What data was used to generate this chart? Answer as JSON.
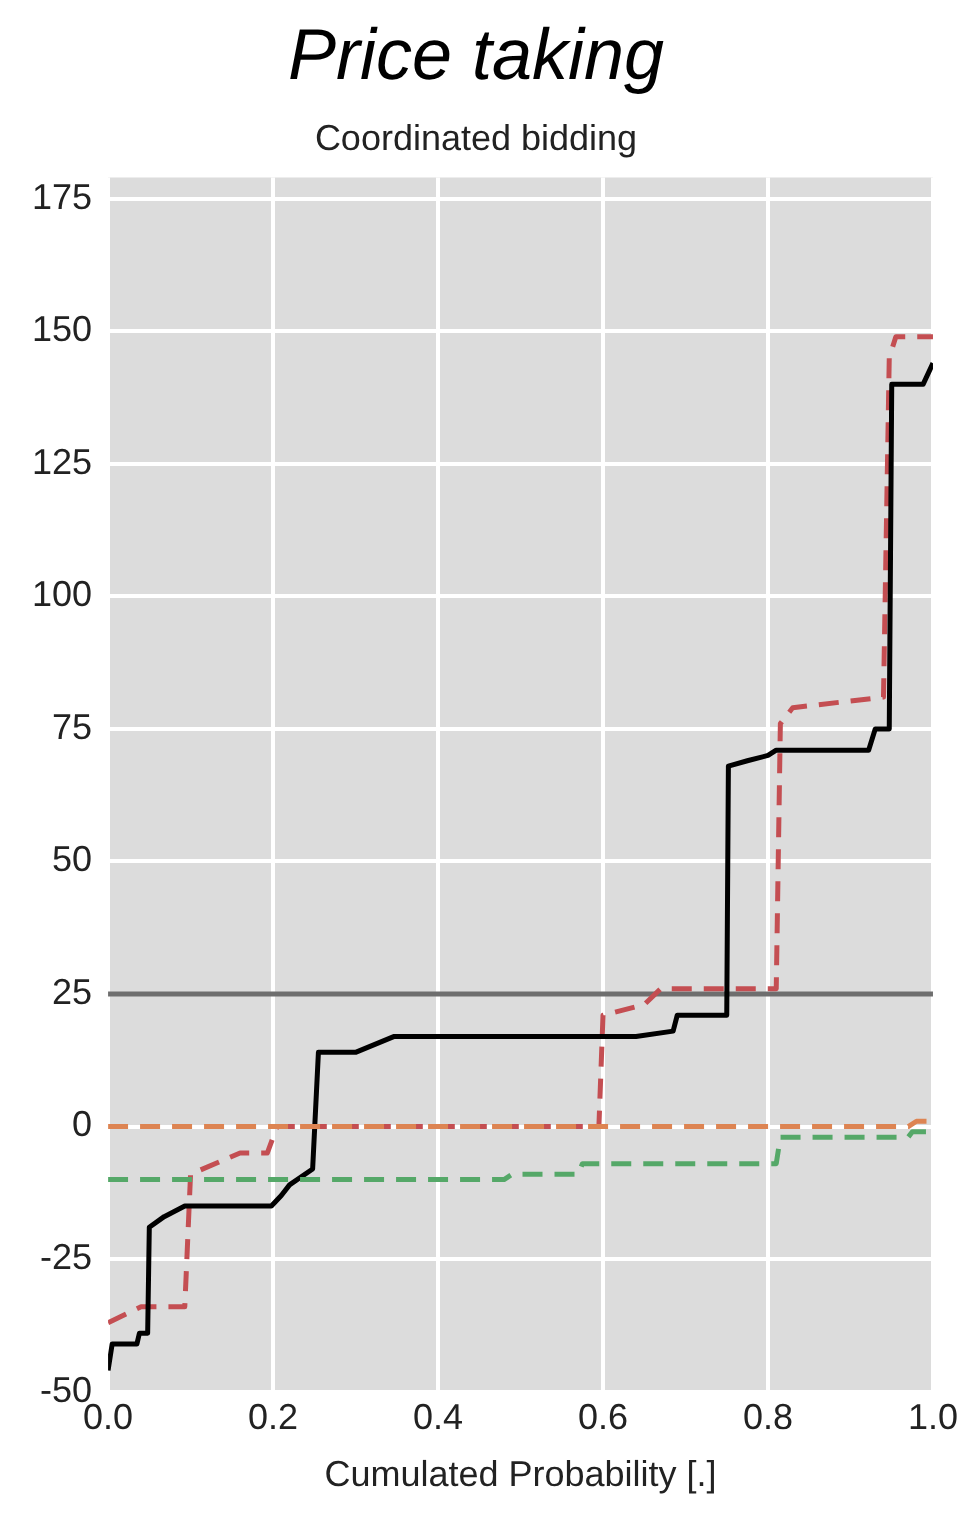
{
  "chart_data": {
    "type": "line",
    "title": "Price taking",
    "subtitle": "Coordinated bidding",
    "xlabel": "Cumulated Probability [.]",
    "xlim": [
      0,
      1
    ],
    "xticks": [
      {
        "value": 0,
        "label": "0.0"
      },
      {
        "value": 0.2,
        "label": "0.2"
      },
      {
        "value": 0.4,
        "label": "0.4"
      },
      {
        "value": 0.6,
        "label": "0.6"
      },
      {
        "value": 0.8,
        "label": "0.8"
      },
      {
        "value": 1,
        "label": "1.0"
      }
    ],
    "ylim": [
      -50,
      179
    ],
    "yticks": [
      -50,
      -25,
      0,
      25,
      50,
      75,
      100,
      125,
      150,
      175
    ],
    "grid": true,
    "legend": false,
    "marker": "none",
    "ref_lines": [
      {
        "axis": "y",
        "value": 25,
        "color": "#6e6e6e",
        "line_style": "solid"
      }
    ],
    "series": [
      {
        "color": "#dd8452",
        "line_style": "dashed",
        "x": [
          0,
          0.97,
          0.98,
          1
        ],
        "values": [
          0,
          0,
          1,
          1
        ]
      },
      {
        "color": "#55a868",
        "line_style": "dashed",
        "x": [
          0,
          0.48,
          0.49,
          0.57,
          0.575,
          0.81,
          0.815,
          0.97,
          0.975,
          1
        ],
        "values": [
          -10,
          -10,
          -9,
          -9,
          -7,
          -7,
          -2,
          -2,
          -1,
          -1
        ]
      },
      {
        "color": "#000000",
        "line_style": "solid",
        "x": [
          0,
          0.005,
          0.035,
          0.038,
          0.048,
          0.05,
          0.068,
          0.093,
          0.198,
          0.21,
          0.22,
          0.248,
          0.255,
          0.3,
          0.347,
          0.64,
          0.685,
          0.69,
          0.75,
          0.752,
          0.775,
          0.8,
          0.81,
          0.922,
          0.93,
          0.947,
          0.95,
          0.988,
          1
        ],
        "values": [
          -46,
          -41,
          -41,
          -39,
          -39,
          -19,
          -17,
          -15,
          -15,
          -13,
          -11,
          -8,
          14,
          14,
          17,
          17,
          18,
          21,
          21,
          68,
          69,
          70,
          71,
          71,
          75,
          75,
          140,
          140,
          144
        ]
      },
      {
        "color": "#c44e52",
        "line_style": "dashed",
        "x": [
          0,
          0.04,
          0.093,
          0.1,
          0.16,
          0.193,
          0.205,
          0.595,
          0.6,
          0.65,
          0.67,
          0.81,
          0.815,
          0.83,
          0.94,
          0.947,
          0.955,
          1
        ],
        "values": [
          -37,
          -34,
          -34,
          -9,
          -5,
          -5,
          0,
          0,
          21,
          23,
          26,
          26,
          76,
          79,
          81,
          145,
          149,
          149
        ]
      }
    ]
  }
}
